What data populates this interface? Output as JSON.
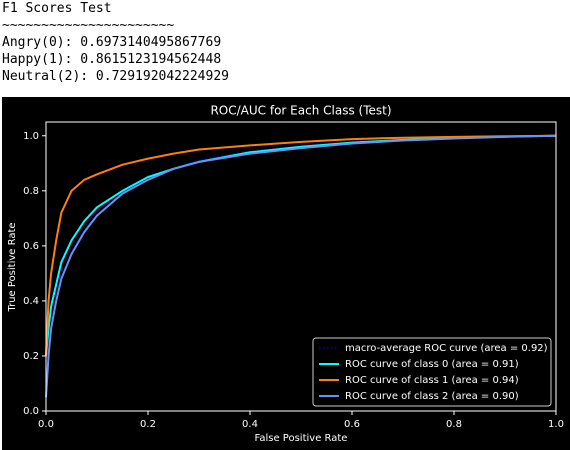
{
  "output_lines": [
    "F1 Scores Test",
    "~~~~~~~~~~~~~~~~~~~~~~",
    "Angry(0): 0.6973140495867769",
    "Happy(1): 0.8615123194562448",
    "Neutral(2): 0.729192042224929"
  ],
  "chart_data": {
    "type": "line",
    "title": "ROC/AUC for Each Class (Test)",
    "x_label": "False Positive Rate",
    "y_label": "True Positive Rate",
    "x": [
      0,
      0.005,
      0.01,
      0.02,
      0.03,
      0.05,
      0.075,
      0.1,
      0.15,
      0.2,
      0.25,
      0.3,
      0.4,
      0.5,
      0.6,
      0.7,
      0.8,
      0.9,
      1.0
    ],
    "series": [
      {
        "name": "macro-average ROC curve (area = 0.92)",
        "color": "#000080",
        "linestyle": "dotted",
        "values": [
          0.15,
          0.25,
          0.35,
          0.42,
          0.5,
          0.58,
          0.66,
          0.73,
          0.8,
          0.85,
          0.88,
          0.91,
          0.945,
          0.965,
          0.978,
          0.987,
          0.993,
          0.997,
          1
        ]
      },
      {
        "name": "ROC curve of class 0 (area = 0.91)",
        "color": "#00ffff",
        "linestyle": "solid",
        "values": [
          0.2,
          0.3,
          0.38,
          0.46,
          0.54,
          0.62,
          0.69,
          0.74,
          0.8,
          0.85,
          0.88,
          0.905,
          0.94,
          0.96,
          0.975,
          0.985,
          0.992,
          0.997,
          1
        ]
      },
      {
        "name": "ROC curve of class 1 (area = 0.94)",
        "color": "#ff7f0e",
        "linestyle": "solid",
        "values": [
          0.2,
          0.4,
          0.5,
          0.62,
          0.72,
          0.8,
          0.84,
          0.86,
          0.895,
          0.917,
          0.935,
          0.95,
          0.965,
          0.978,
          0.988,
          0.993,
          0.996,
          0.998,
          1
        ]
      },
      {
        "name": "ROC curve of class 2 (area = 0.90)",
        "color": "#6495ed",
        "linestyle": "solid",
        "values": [
          0.05,
          0.2,
          0.3,
          0.4,
          0.48,
          0.57,
          0.65,
          0.71,
          0.79,
          0.84,
          0.88,
          0.905,
          0.935,
          0.955,
          0.972,
          0.983,
          0.99,
          0.996,
          1
        ]
      }
    ],
    "xlim": [
      0,
      1
    ],
    "ylim": [
      0,
      1.05
    ],
    "xticks": [
      {
        "value": 0,
        "label": "0.0"
      },
      0.2,
      0.4,
      0.6,
      0.8,
      {
        "value": 1,
        "label": "1.0"
      }
    ],
    "yticks": [
      {
        "value": 0,
        "label": "0.0"
      },
      0.2,
      0.4,
      0.6,
      0.8,
      {
        "value": 1,
        "label": "1.0"
      }
    ],
    "grid": false,
    "legend": "lower right"
  }
}
